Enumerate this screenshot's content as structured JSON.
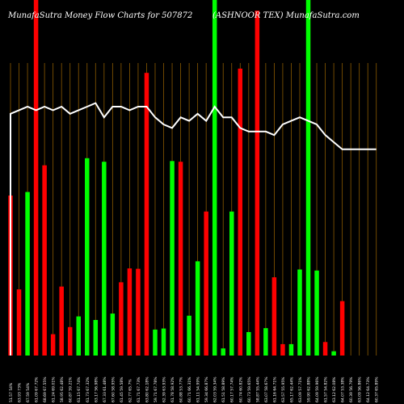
{
  "header": {
    "title": "MunafaSutra  Money Flow  Charts for 507872",
    "subtitle": "(ASHNOOR TEX) MunafaSutra.com"
  },
  "colors": {
    "background": "#000000",
    "up": "#00ff00",
    "down": "#ff0000",
    "gridline": "#8B5A00",
    "line": "#ffffff",
    "text": "#ffffff"
  },
  "chart_data": {
    "type": "bar",
    "title": "MunafaSutra  Money Flow  Charts for 507872",
    "subtitle": "(ASHNOOR TEX) MunafaSutra.com",
    "xlabel": "",
    "ylabel": "",
    "ylim": [
      0,
      100
    ],
    "grid": true,
    "legend": "none",
    "categories": [
      "06 Jan 2025",
      "03 Jan 2025",
      "02 Jan 2025",
      "01 Jan 2025",
      "31 Dec 2024",
      "30 Dec 2024",
      "27 Dec 2024",
      "26 Dec 2024",
      "24 Dec 2024",
      "23 Dec 2024",
      "20 Dec 2024",
      "19 Dec 2024",
      "18 Dec 2024",
      "17 Dec 2024",
      "16 Dec 2024",
      "13 Dec 2024",
      "12 Dec 2024",
      "11 Dec 2024",
      "10 Dec 2024",
      "09 Dec 2024",
      "06 Dec 2024",
      "05 Dec 2024",
      "04 Dec 2024",
      "03 Dec 2024",
      "02 Dec 2024",
      "29 Nov 2024",
      "28 Nov 2024",
      "27 Nov 2024",
      "26 Nov 2024",
      "25 Nov 2024",
      "22 Nov 2024",
      "21 Nov 2024",
      "19 Nov 2024",
      "18 Nov 2024",
      "14 Nov 2024",
      "13 Nov 2024",
      "12 Nov 2024",
      "11 Nov 2024",
      "08 Nov 2024",
      "07 Nov 2024",
      "06 Nov 2024",
      "05 Nov 2024",
      "04 Nov 2024",
      "01 Nov 2024"
    ],
    "tick_labels": [
      "51.57 54%",
      "63.93 73%",
      "67.59 54%",
      "61.09 67.72%",
      "68.69 67.55%",
      "61.24 69.01%",
      "58.95 62.48%",
      "60.87 59.21%",
      "61.15 67.74%",
      "61.73 67.32%",
      "63.17 56.98%",
      "67.33 61.48%",
      "67.60 58.95%",
      "61.45 59.58%",
      "62.77 65.7%",
      "61.71 67.73%",
      "63.80 62.18%",
      "59.71 67.78%",
      "62.39 63.93%",
      "61.78 58.92%",
      "60.88 53.77%",
      "60.71 66.31%",
      "61.11 54.99%",
      "59.34 66.87%",
      "62.03 59.34%",
      "61.51 58.89%",
      "60.17 57.74%",
      "60.74 60.82%",
      "60.73 59.65%",
      "58.87 55.44%",
      "63.07 58.67%",
      "61.16 64.71%",
      "63.57 55.95%",
      "65.17 62.44%",
      "63.09 57.71%",
      "59.90 62.88%",
      "64.09 59.96%",
      "61.57 54.82%",
      "63.12 62.08%",
      "64.07 53.38%",
      "60.39 56.79%",
      "63.09 56.86%",
      "64.12 64.73%",
      "60.37 65.89%"
    ],
    "series": [
      {
        "values": [
          45,
          18.6,
          46,
          100,
          53.5,
          6,
          19.4,
          8,
          11,
          55.5,
          10,
          54.5,
          11.8,
          20.6,
          24.5,
          24.4,
          79.5,
          7.3,
          7.6,
          54.7,
          54.5,
          11.2,
          26.5,
          40.5,
          100,
          2,
          40.5,
          80.7,
          6.6,
          97,
          7.7,
          22,
          3.2,
          3.2,
          24.2,
          100,
          23.9,
          3.8,
          1.2,
          15.3,
          0,
          0,
          0,
          0
        ],
        "directions": [
          "down",
          "down",
          "up",
          "down",
          "down",
          "down",
          "down",
          "down",
          "up",
          "up",
          "up",
          "up",
          "up",
          "down",
          "down",
          "down",
          "down",
          "up",
          "up",
          "up",
          "down",
          "up",
          "up",
          "down",
          "up",
          "up",
          "up",
          "down",
          "up",
          "down",
          "up",
          "down",
          "down",
          "up",
          "up",
          "up",
          "up",
          "down",
          "up",
          "down",
          "up",
          "up",
          "up",
          "up"
        ]
      },
      {
        "values": [
          68,
          69,
          70,
          69,
          70,
          69,
          70,
          68,
          69,
          70,
          71,
          67,
          70,
          70,
          69,
          70,
          70,
          67,
          65,
          64,
          67,
          66,
          68,
          66,
          70,
          67,
          67,
          64,
          63,
          63,
          63,
          62,
          65,
          66,
          67,
          66,
          65,
          62,
          60,
          58,
          58,
          58,
          58,
          58
        ]
      }
    ],
    "up_down_note": ""
  }
}
